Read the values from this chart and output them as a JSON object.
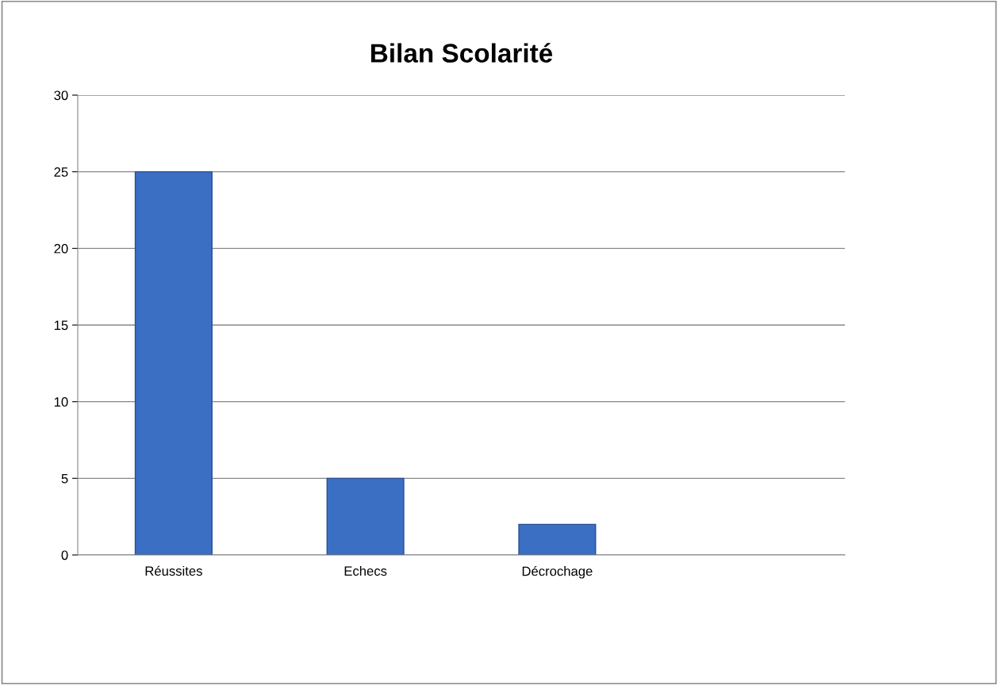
{
  "chart_data": {
    "type": "bar",
    "title": "Bilan Scolarité",
    "categories": [
      "Réussites",
      "Echecs",
      "Décrochage",
      null
    ],
    "values": [
      25,
      5,
      2,
      null
    ],
    "color": "#3a6fc4",
    "ylim": [
      0,
      30
    ],
    "yticks": [
      0,
      5,
      10,
      15,
      20,
      25,
      30
    ],
    "grid": "y",
    "legend": false
  }
}
